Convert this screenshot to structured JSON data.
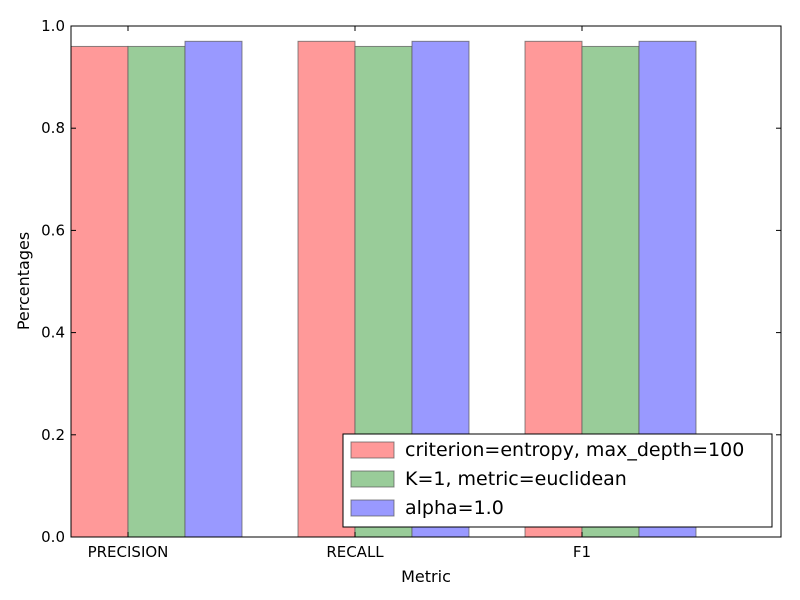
{
  "chart_data": {
    "type": "bar",
    "title": "",
    "xlabel": "Metric",
    "ylabel": "Percentages",
    "categories": [
      "PRECISION",
      "RECALL",
      "F1"
    ],
    "series": [
      {
        "name": "criterion=entropy, max_depth=100",
        "values": [
          0.96,
          0.97,
          0.97
        ],
        "color": "#ff9999"
      },
      {
        "name": "K=1, metric=euclidean",
        "values": [
          0.96,
          0.96,
          0.96
        ],
        "color": "#99cc99"
      },
      {
        "name": "alpha=1.0",
        "values": [
          0.97,
          0.97,
          0.97
        ],
        "color": "#9999ff"
      }
    ],
    "ylim": [
      0.0,
      1.0
    ],
    "yticks": [
      "0.0",
      "0.2",
      "0.4",
      "0.6",
      "0.8",
      "1.0"
    ],
    "grid": false,
    "legend_position": "lower-right"
  }
}
